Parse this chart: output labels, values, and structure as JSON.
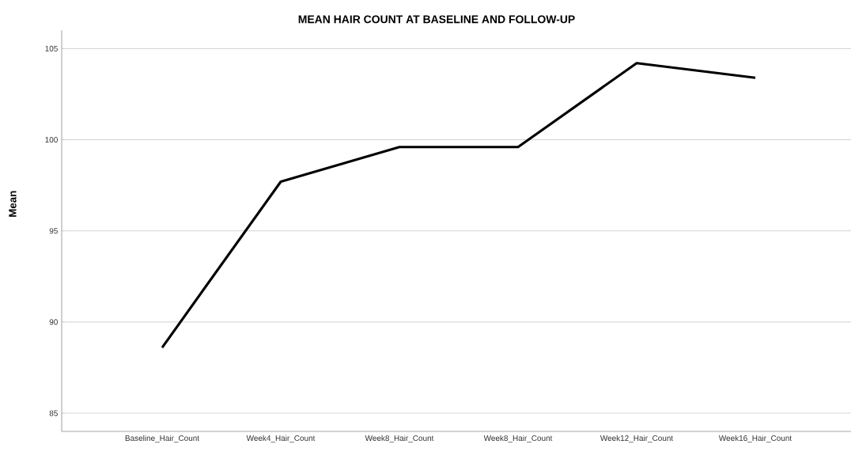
{
  "chart_data": {
    "type": "line",
    "title": "MEAN HAIR COUNT AT BASELINE AND FOLLOW-UP",
    "ylabel": "Mean",
    "categories": [
      "Baseline_Hair_Count",
      "Week4_Hair_Count",
      "Week8_Hair_Count",
      "Week8_Hair_Count",
      "Week12_Hair_Count",
      "Week16_Hair_Count"
    ],
    "values": [
      88.6,
      97.7,
      99.6,
      99.6,
      104.2,
      103.4
    ],
    "color": "#000000",
    "ylim": [
      84,
      106
    ],
    "yticks": [
      85,
      90,
      95,
      100,
      105
    ],
    "grid": "y",
    "marker": "none",
    "line_style": "solid"
  }
}
